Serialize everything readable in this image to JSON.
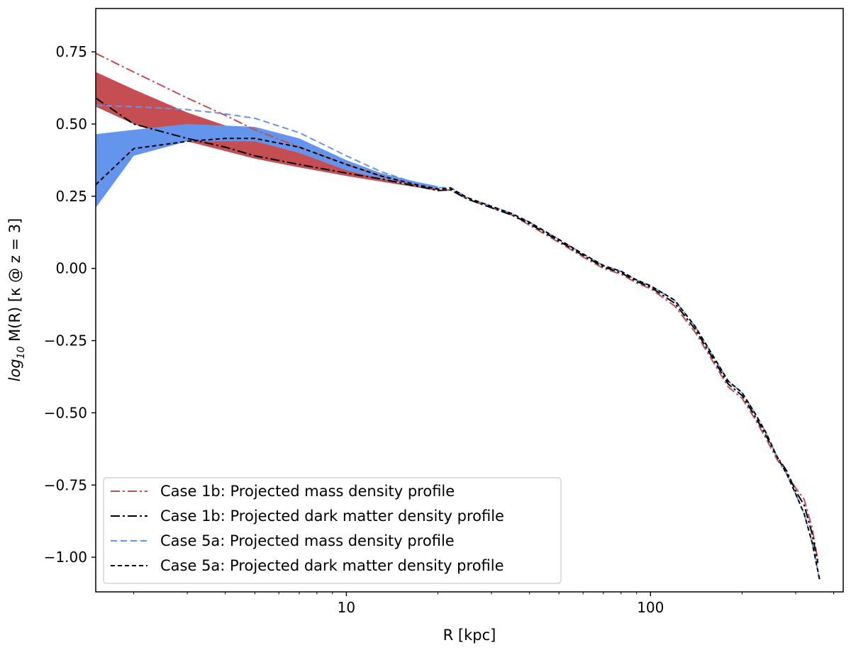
{
  "chart_data": {
    "type": "line",
    "title": "",
    "xlabel": "R [kpc]",
    "ylabel_parts": {
      "pre": "log",
      "sub": "10",
      "post": " M(R) [κ @ z = 3]"
    },
    "xscale": "log",
    "xlim": [
      1.5,
      430
    ],
    "ylim": [
      -1.12,
      0.9
    ],
    "x_ticks": [
      {
        "value": 10,
        "label": "10"
      },
      {
        "value": 100,
        "label": "100"
      }
    ],
    "y_ticks": [
      {
        "value": 0.75,
        "label": "0.75"
      },
      {
        "value": 0.5,
        "label": "0.50"
      },
      {
        "value": 0.25,
        "label": "0.25"
      },
      {
        "value": 0.0,
        "label": "0.00"
      },
      {
        "value": -0.25,
        "label": "−0.25"
      },
      {
        "value": -0.5,
        "label": "−0.50"
      },
      {
        "value": -0.75,
        "label": "−0.75"
      },
      {
        "value": -1.0,
        "label": "−1.00"
      }
    ],
    "grid": false,
    "legend_position": "lower-left",
    "bands": [
      {
        "color": "#c44e52",
        "x": [
          1.5,
          2,
          3,
          5,
          7,
          10,
          15,
          20
        ],
        "upper": [
          0.68,
          0.62,
          0.54,
          0.46,
          0.4,
          0.345,
          0.295,
          0.275
        ],
        "lower": [
          0.56,
          0.5,
          0.44,
          0.38,
          0.35,
          0.32,
          0.29,
          0.27
        ]
      },
      {
        "color": "#6495ed",
        "x": [
          1.5,
          2,
          3,
          5,
          7,
          10,
          13,
          17,
          20
        ],
        "upper": [
          0.465,
          0.48,
          0.5,
          0.49,
          0.45,
          0.375,
          0.33,
          0.3,
          0.285
        ],
        "lower": [
          0.21,
          0.39,
          0.44,
          0.44,
          0.4,
          0.34,
          0.31,
          0.285,
          0.275
        ]
      }
    ],
    "series": [
      {
        "name": "Case 1b: Projected mass density profile",
        "color": "#c44e52",
        "dash": "13 4 3 4",
        "x": [
          1.5,
          2,
          3,
          4,
          5,
          7,
          10,
          13,
          17,
          20,
          22,
          25,
          30,
          35,
          40,
          50,
          60,
          70,
          80,
          90,
          100,
          120,
          140,
          160,
          180,
          200,
          220,
          240,
          260,
          280,
          300,
          320,
          340,
          355
        ],
        "y": [
          0.745,
          0.68,
          0.59,
          0.53,
          0.48,
          0.42,
          0.36,
          0.32,
          0.285,
          0.27,
          0.272,
          0.24,
          0.21,
          0.185,
          0.15,
          0.09,
          0.04,
          0.0,
          -0.02,
          -0.05,
          -0.07,
          -0.13,
          -0.22,
          -0.32,
          -0.41,
          -0.45,
          -0.52,
          -0.59,
          -0.66,
          -0.71,
          -0.76,
          -0.8,
          -0.9,
          -1.01
        ]
      },
      {
        "name": "Case 1b: Projected dark matter density profile",
        "color": "#000000",
        "dash": "13 4 3 4",
        "x": [
          1.5,
          2,
          3,
          4,
          5,
          7,
          10,
          13,
          17,
          20,
          22,
          25,
          30,
          35,
          40,
          50,
          60,
          70,
          80,
          90,
          100,
          120,
          140,
          160,
          180,
          200,
          220,
          240,
          260,
          280,
          300,
          320,
          340,
          355
        ],
        "y": [
          0.59,
          0.5,
          0.45,
          0.42,
          0.39,
          0.36,
          0.33,
          0.31,
          0.285,
          0.27,
          0.272,
          0.24,
          0.21,
          0.185,
          0.155,
          0.095,
          0.045,
          0.005,
          -0.015,
          -0.045,
          -0.065,
          -0.12,
          -0.21,
          -0.31,
          -0.4,
          -0.44,
          -0.51,
          -0.58,
          -0.65,
          -0.7,
          -0.77,
          -0.82,
          -0.92,
          -1.02
        ]
      },
      {
        "name": "Case 5a: Projected mass density profile",
        "color": "#6495ed",
        "dash": "9 5",
        "x": [
          1.5,
          2,
          3,
          4,
          5,
          7,
          10,
          13,
          17,
          20,
          22,
          25,
          30,
          35,
          40,
          50,
          60,
          70,
          80,
          90,
          100,
          120,
          140,
          160,
          180,
          200,
          220,
          240,
          260,
          280,
          300,
          320,
          340,
          360
        ],
        "y": [
          0.565,
          0.56,
          0.55,
          0.535,
          0.52,
          0.47,
          0.39,
          0.335,
          0.295,
          0.28,
          0.28,
          0.245,
          0.215,
          0.19,
          0.16,
          0.1,
          0.05,
          0.01,
          -0.01,
          -0.04,
          -0.06,
          -0.11,
          -0.2,
          -0.3,
          -0.39,
          -0.43,
          -0.5,
          -0.57,
          -0.65,
          -0.71,
          -0.78,
          -0.85,
          -0.95,
          -1.08
        ]
      },
      {
        "name": "Case 5a: Projected dark matter density profile",
        "color": "#000000",
        "dash": "6 4",
        "x": [
          1.5,
          2,
          3,
          4,
          5,
          7,
          10,
          13,
          17,
          20,
          22,
          25,
          30,
          35,
          40,
          50,
          60,
          70,
          80,
          90,
          100,
          120,
          140,
          160,
          180,
          200,
          220,
          240,
          260,
          280,
          300,
          320,
          340,
          360
        ],
        "y": [
          0.29,
          0.415,
          0.44,
          0.45,
          0.45,
          0.42,
          0.36,
          0.32,
          0.29,
          0.275,
          0.278,
          0.245,
          0.215,
          0.19,
          0.16,
          0.1,
          0.05,
          0.01,
          -0.01,
          -0.04,
          -0.06,
          -0.11,
          -0.2,
          -0.3,
          -0.39,
          -0.43,
          -0.5,
          -0.57,
          -0.65,
          -0.71,
          -0.78,
          -0.85,
          -0.95,
          -1.08
        ]
      }
    ]
  }
}
